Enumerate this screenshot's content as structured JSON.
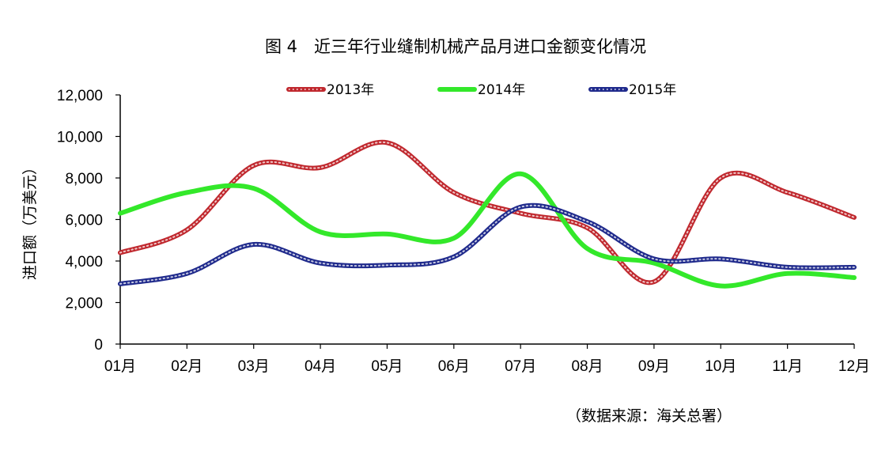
{
  "chart_data": {
    "type": "line",
    "title": "图 4　近三年行业缝制机械产品月进口金额变化情况",
    "ylabel": "进口额（万美元）",
    "xlabel": "",
    "categories": [
      "01月",
      "02月",
      "03月",
      "04月",
      "05月",
      "06月",
      "07月",
      "08月",
      "09月",
      "10月",
      "11月",
      "12月"
    ],
    "ylim": [
      0,
      12000
    ],
    "yticks": [
      0,
      2000,
      4000,
      6000,
      8000,
      10000,
      12000
    ],
    "ytick_labels": [
      "0",
      "2,000",
      "4,000",
      "6,000",
      "8,000",
      "10,000",
      "12,000"
    ],
    "legend_position": "top",
    "grid": false,
    "series": [
      {
        "name": "2013年",
        "color": "#c0282e",
        "style": "dotted",
        "values": [
          4400,
          5500,
          8600,
          8500,
          9700,
          7300,
          6300,
          5600,
          3000,
          8000,
          7300,
          6100
        ]
      },
      {
        "name": "2014年",
        "color": "#33e82a",
        "style": "solid",
        "values": [
          6300,
          7300,
          7500,
          5400,
          5300,
          5100,
          8200,
          4600,
          3900,
          2800,
          3400,
          3200
        ]
      },
      {
        "name": "2015年",
        "color": "#1f2a8c",
        "style": "dotted",
        "values": [
          2900,
          3400,
          4800,
          3900,
          3800,
          4200,
          6600,
          5900,
          4100,
          4100,
          3700,
          3700
        ]
      }
    ],
    "source": "（数据来源：海关总署）"
  }
}
